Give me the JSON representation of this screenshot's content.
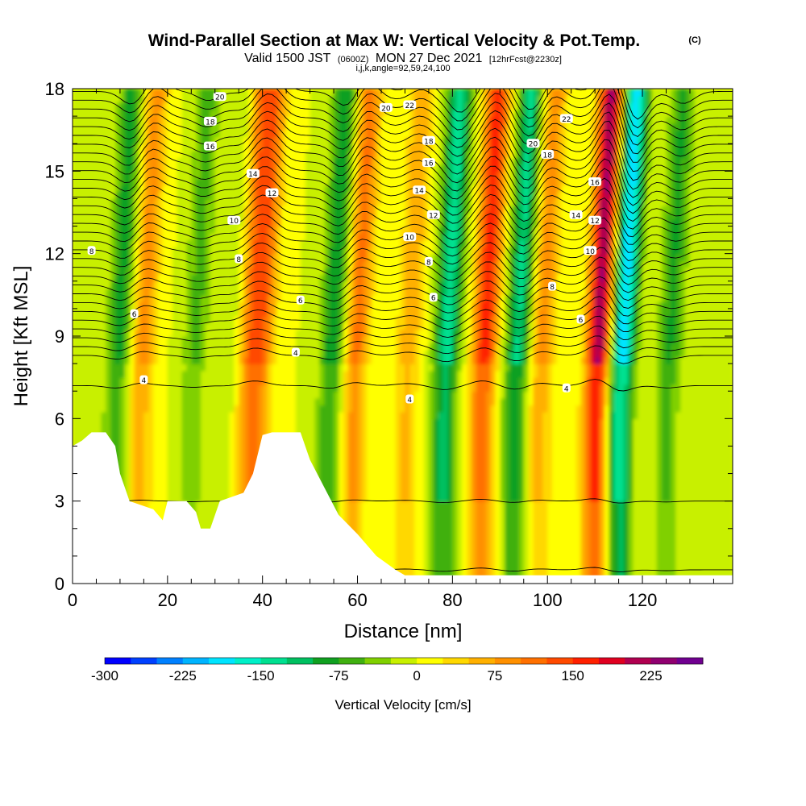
{
  "title": {
    "main": "Wind-Parallel Section at Max W: Vertical Velocity & Pot.Temp.",
    "copyright": "(C)",
    "valid_prefix": "Valid 1500 JST",
    "valid_utc": "(0600Z)",
    "valid_date": "MON 27 Dec 2021",
    "forecast": "[12hrFcst@2230z]",
    "indices": "i,j,k,angle=92,59,24,100"
  },
  "chart_data": {
    "type": "heatmap",
    "xlabel": "Distance [nm]",
    "ylabel": "Height [Kft MSL]",
    "xlim": [
      0,
      139
    ],
    "ylim": [
      0,
      18
    ],
    "xticks": [
      0,
      20,
      40,
      60,
      80,
      100,
      120
    ],
    "yticks": [
      0,
      3,
      6,
      9,
      12,
      15,
      18
    ],
    "fill_variable": "Vertical Velocity [cm/s]",
    "contour_variable": "Potential temperature",
    "updraft_columns": [
      {
        "x": 14,
        "peak": 90
      },
      {
        "x": 36,
        "peak": 100
      },
      {
        "x": 39,
        "peak": 110
      },
      {
        "x": 59,
        "peak": 110
      },
      {
        "x": 70,
        "peak": 70
      },
      {
        "x": 86,
        "peak": 165
      },
      {
        "x": 98,
        "peak": 90
      },
      {
        "x": 110,
        "peak": 230
      }
    ],
    "downdraft_columns": [
      {
        "x": 9,
        "peak": -90
      },
      {
        "x": 25,
        "peak": -60
      },
      {
        "x": 34,
        "peak": -40
      },
      {
        "x": 54,
        "peak": -100
      },
      {
        "x": 78,
        "peak": -140
      },
      {
        "x": 93,
        "peak": -130
      },
      {
        "x": 115,
        "peak": -200
      },
      {
        "x": 125,
        "peak": -80
      }
    ],
    "terrain": [
      [
        0,
        5.0
      ],
      [
        2,
        5.2
      ],
      [
        4,
        5.5
      ],
      [
        7,
        5.5
      ],
      [
        9,
        5.0
      ],
      [
        10,
        4.0
      ],
      [
        11,
        3.5
      ],
      [
        12,
        3.0
      ],
      [
        17,
        2.7
      ],
      [
        19,
        2.3
      ],
      [
        20,
        3.0
      ],
      [
        24,
        3.0
      ],
      [
        26,
        2.6
      ],
      [
        27,
        2.0
      ],
      [
        29,
        2.0
      ],
      [
        31,
        3.0
      ],
      [
        36,
        3.3
      ],
      [
        38,
        4.0
      ],
      [
        40,
        5.4
      ],
      [
        42,
        5.5
      ],
      [
        48,
        5.5
      ],
      [
        50,
        4.5
      ],
      [
        53,
        3.5
      ],
      [
        56,
        2.5
      ],
      [
        60,
        1.8
      ],
      [
        64,
        1.0
      ],
      [
        68,
        0.5
      ],
      [
        70,
        0.3
      ],
      [
        139,
        0.3
      ]
    ],
    "contour_labels": [
      {
        "text": "4",
        "x": 15,
        "y": 7.4
      },
      {
        "text": "4",
        "x": 47,
        "y": 8.4
      },
      {
        "text": "4",
        "x": 71,
        "y": 6.7
      },
      {
        "text": "4",
        "x": 104,
        "y": 7.1
      },
      {
        "text": "6",
        "x": 13,
        "y": 9.8
      },
      {
        "text": "6",
        "x": 48,
        "y": 10.3
      },
      {
        "text": "6",
        "x": 76,
        "y": 10.4
      },
      {
        "text": "6",
        "x": 107,
        "y": 9.6
      },
      {
        "text": "8",
        "x": 4,
        "y": 12.1
      },
      {
        "text": "8",
        "x": 35,
        "y": 11.8
      },
      {
        "text": "8",
        "x": 75,
        "y": 11.7
      },
      {
        "text": "8",
        "x": 101,
        "y": 10.8
      },
      {
        "text": "10",
        "x": 34,
        "y": 13.2
      },
      {
        "text": "10",
        "x": 71,
        "y": 12.6
      },
      {
        "text": "10",
        "x": 109,
        "y": 12.1
      },
      {
        "text": "12",
        "x": 42,
        "y": 14.2
      },
      {
        "text": "12",
        "x": 76,
        "y": 13.4
      },
      {
        "text": "12",
        "x": 110,
        "y": 13.2
      },
      {
        "text": "14",
        "x": 38,
        "y": 14.9
      },
      {
        "text": "14",
        "x": 73,
        "y": 14.3
      },
      {
        "text": "14",
        "x": 106,
        "y": 13.4
      },
      {
        "text": "16",
        "x": 29,
        "y": 15.9
      },
      {
        "text": "16",
        "x": 75,
        "y": 15.3
      },
      {
        "text": "16",
        "x": 110,
        "y": 14.6
      },
      {
        "text": "18",
        "x": 29,
        "y": 16.8
      },
      {
        "text": "18",
        "x": 75,
        "y": 16.1
      },
      {
        "text": "18",
        "x": 100,
        "y": 15.6
      },
      {
        "text": "20",
        "x": 31,
        "y": 17.7
      },
      {
        "text": "20",
        "x": 66,
        "y": 17.3
      },
      {
        "text": "20",
        "x": 97,
        "y": 16.0
      },
      {
        "text": "22",
        "x": 71,
        "y": 17.4
      },
      {
        "text": "22",
        "x": 104,
        "y": 16.9
      }
    ],
    "colorbar": {
      "label": "Vertical Velocity [cm/s]",
      "min": -300,
      "max": 250,
      "step": 25,
      "tick_labels": [
        "-300",
        "-225",
        "-150",
        "-75",
        "0",
        "75",
        "150",
        "225"
      ],
      "colors": [
        "#0000ff",
        "#0040ff",
        "#0080ff",
        "#00b4ff",
        "#00e4ff",
        "#00f0c8",
        "#00e090",
        "#00c060",
        "#10a020",
        "#40b010",
        "#80d000",
        "#c8f000",
        "#ffff00",
        "#ffd800",
        "#ffb000",
        "#ff9000",
        "#ff7000",
        "#ff4a00",
        "#ff2000",
        "#e00020",
        "#b00050",
        "#900070",
        "#700090"
      ]
    }
  }
}
